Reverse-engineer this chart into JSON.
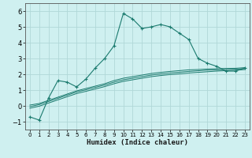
{
  "xlabel": "Humidex (Indice chaleur)",
  "background_color": "#cff0f0",
  "grid_color": "#b0d8d8",
  "line_color": "#1a7a6e",
  "xlim": [
    -0.5,
    23.5
  ],
  "ylim": [
    -1.5,
    6.5
  ],
  "xticks": [
    0,
    1,
    2,
    3,
    4,
    5,
    6,
    7,
    8,
    9,
    10,
    11,
    12,
    13,
    14,
    15,
    16,
    17,
    18,
    19,
    20,
    21,
    22,
    23
  ],
  "yticks": [
    -1,
    0,
    1,
    2,
    3,
    4,
    5,
    6
  ],
  "series1_x": [
    0,
    1,
    2,
    3,
    4,
    5,
    6,
    7,
    8,
    9,
    10,
    11,
    12,
    13,
    14,
    15,
    16,
    17,
    18,
    19,
    20,
    21,
    22,
    23
  ],
  "series1_y": [
    -0.7,
    -0.9,
    0.5,
    1.6,
    1.5,
    1.2,
    1.7,
    2.4,
    3.0,
    3.8,
    5.85,
    5.5,
    4.9,
    5.0,
    5.15,
    5.0,
    4.6,
    4.2,
    3.0,
    2.7,
    2.5,
    2.2,
    2.2,
    2.4
  ],
  "series2_x": [
    0,
    1,
    2,
    3,
    4,
    5,
    6,
    7,
    8,
    9,
    10,
    11,
    12,
    13,
    14,
    15,
    16,
    17,
    18,
    19,
    20,
    21,
    22,
    23
  ],
  "series2_y": [
    0.05,
    0.15,
    0.35,
    0.55,
    0.75,
    0.95,
    1.1,
    1.25,
    1.4,
    1.6,
    1.75,
    1.85,
    1.95,
    2.05,
    2.12,
    2.18,
    2.23,
    2.28,
    2.3,
    2.33,
    2.35,
    2.37,
    2.38,
    2.42
  ],
  "series3_x": [
    0,
    1,
    2,
    3,
    4,
    5,
    6,
    7,
    8,
    9,
    10,
    11,
    12,
    13,
    14,
    15,
    16,
    17,
    18,
    19,
    20,
    21,
    22,
    23
  ],
  "series3_y": [
    -0.05,
    0.08,
    0.28,
    0.48,
    0.68,
    0.88,
    1.02,
    1.17,
    1.32,
    1.5,
    1.65,
    1.75,
    1.85,
    1.95,
    2.02,
    2.08,
    2.13,
    2.18,
    2.22,
    2.26,
    2.28,
    2.3,
    2.32,
    2.36
  ],
  "series4_x": [
    0,
    1,
    2,
    3,
    4,
    5,
    6,
    7,
    8,
    9,
    10,
    11,
    12,
    13,
    14,
    15,
    16,
    17,
    18,
    19,
    20,
    21,
    22,
    23
  ],
  "series4_y": [
    -0.15,
    -0.02,
    0.18,
    0.38,
    0.58,
    0.78,
    0.92,
    1.07,
    1.22,
    1.4,
    1.55,
    1.65,
    1.75,
    1.85,
    1.92,
    1.98,
    2.03,
    2.08,
    2.12,
    2.16,
    2.2,
    2.23,
    2.25,
    2.3
  ]
}
